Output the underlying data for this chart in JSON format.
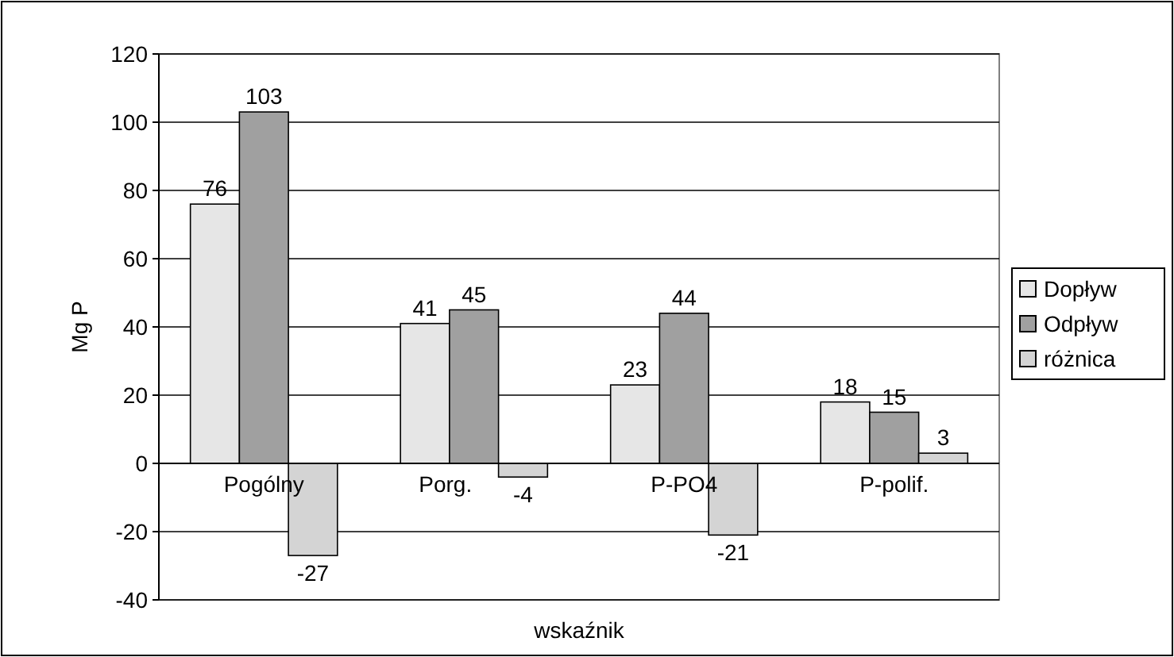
{
  "chart_data": {
    "type": "bar",
    "xlabel": "wskaźnik",
    "ylabel": "Mg P",
    "categories": [
      "Pogólny",
      "Porg.",
      "P-PO4",
      "P-polif."
    ],
    "series": [
      {
        "name": "Dopływ",
        "color": "#e6e6e6",
        "values": [
          76,
          41,
          23,
          18
        ]
      },
      {
        "name": "Odpływ",
        "color": "#a0a0a0",
        "values": [
          103,
          45,
          44,
          15
        ]
      },
      {
        "name": "różnica",
        "color": "#d4d4d4",
        "values": [
          -27,
          -4,
          -21,
          3
        ]
      }
    ],
    "ylim": [
      -40,
      120
    ],
    "yticks": [
      -40,
      -20,
      0,
      20,
      40,
      60,
      80,
      100,
      120
    ],
    "grid": "y",
    "legend": "right",
    "data_labels": true
  }
}
